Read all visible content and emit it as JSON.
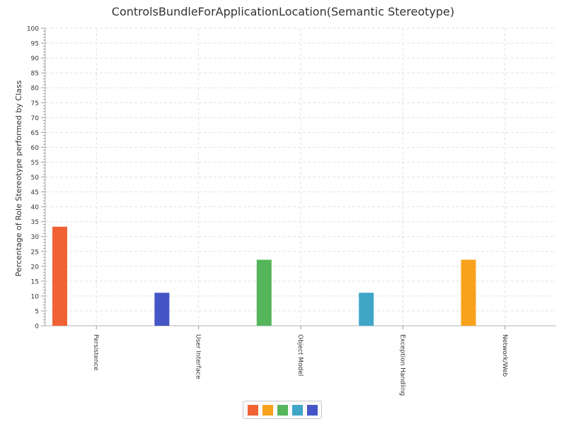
{
  "chart_data": {
    "type": "bar",
    "title": "ControlsBundleForApplicationLocation(Semantic Stereotype)",
    "xlabel": "",
    "ylabel": "Percentage of Role Stereotype performed by Class",
    "ylim": [
      0,
      100
    ],
    "y_ticks": [
      "0",
      "5",
      "10",
      "15",
      "20",
      "25",
      "30",
      "35",
      "40",
      "45",
      "50",
      "55",
      "60",
      "65",
      "70",
      "75",
      "80",
      "85",
      "90",
      "95",
      "100"
    ],
    "grid": true,
    "legend_position": "bottom",
    "categories": [
      "Persistence",
      "User Interface",
      "Object Model",
      "Exception Handling",
      "Network/Web"
    ],
    "series": [
      {
        "color": "#f06233",
        "values": [
          33.3,
          0,
          0,
          0,
          0
        ]
      },
      {
        "color": "#f8a21c",
        "values": [
          0,
          0,
          0,
          0,
          22.2
        ]
      },
      {
        "color": "#55b55a",
        "values": [
          0,
          0,
          22.2,
          0,
          0
        ]
      },
      {
        "color": "#40a6c8",
        "values": [
          0,
          0,
          0,
          11.1,
          0
        ]
      },
      {
        "color": "#4456c6",
        "values": [
          0,
          11.1,
          0,
          0,
          0
        ]
      }
    ],
    "bars": [
      {
        "category": "Persistence",
        "value": 33.3,
        "color": "#f06233"
      },
      {
        "category": "User Interface",
        "value": 11.1,
        "color": "#4456c6"
      },
      {
        "category": "Object Model",
        "value": 22.2,
        "color": "#55b55a"
      },
      {
        "category": "Exception Handling",
        "value": 11.1,
        "color": "#40a6c8"
      },
      {
        "category": "Network/Web",
        "value": 22.2,
        "color": "#f8a21c"
      }
    ]
  }
}
